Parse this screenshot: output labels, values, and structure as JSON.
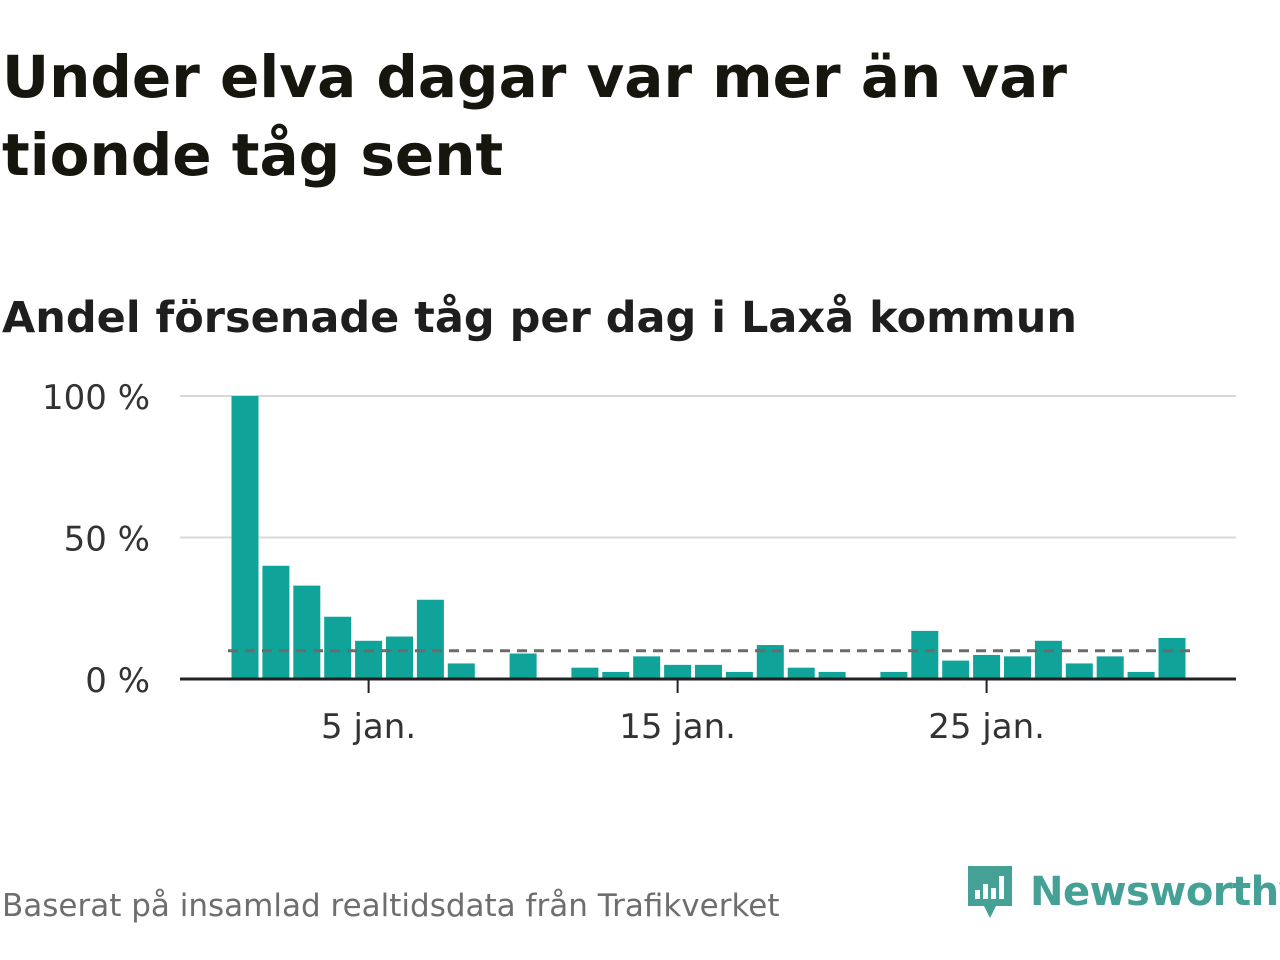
{
  "title": "Under elva dagar var mer än var tionde tåg sent",
  "subtitle": "Andel försenade tåg per dag i Laxå kommun",
  "source": "Baserat på insamlad realtidsdata från Trafikverket",
  "logo": {
    "text": "Newsworthy",
    "icon": "newsworthy-bar-chart-icon",
    "color": "#45a196"
  },
  "colors": {
    "bar": "#0fa39a",
    "grid": "#d9d9d9",
    "axis": "#222222",
    "reference": "#6b6b6b"
  },
  "chart_data": {
    "type": "bar",
    "x_label": "",
    "y_label": "",
    "ylim": [
      0,
      100
    ],
    "y_ticks": [
      {
        "value": 0,
        "label": "0 %"
      },
      {
        "value": 50,
        "label": "50 %"
      },
      {
        "value": 100,
        "label": "100 %"
      }
    ],
    "x_ticks": [
      {
        "day": 5,
        "label": "5 jan."
      },
      {
        "day": 15,
        "label": "15 jan."
      },
      {
        "day": 25,
        "label": "25 jan."
      }
    ],
    "x_range": [
      1,
      31
    ],
    "reference_line": {
      "value": 10,
      "style": "dashed"
    },
    "grid": true,
    "series": [
      {
        "values": [
          {
            "day": 1,
            "value": 100
          },
          {
            "day": 2,
            "value": 40
          },
          {
            "day": 3,
            "value": 33
          },
          {
            "day": 4,
            "value": 22
          },
          {
            "day": 5,
            "value": 13.5
          },
          {
            "day": 6,
            "value": 15
          },
          {
            "day": 7,
            "value": 28
          },
          {
            "day": 8,
            "value": 5.5
          },
          {
            "day": 10,
            "value": 9
          },
          {
            "day": 12,
            "value": 4
          },
          {
            "day": 13,
            "value": 2.5
          },
          {
            "day": 14,
            "value": 8
          },
          {
            "day": 15,
            "value": 5
          },
          {
            "day": 16,
            "value": 5
          },
          {
            "day": 17,
            "value": 2.5
          },
          {
            "day": 18,
            "value": 12
          },
          {
            "day": 19,
            "value": 4
          },
          {
            "day": 20,
            "value": 2.5
          },
          {
            "day": 22,
            "value": 2.5
          },
          {
            "day": 23,
            "value": 17
          },
          {
            "day": 24,
            "value": 6.5
          },
          {
            "day": 25,
            "value": 8.5
          },
          {
            "day": 26,
            "value": 8
          },
          {
            "day": 27,
            "value": 13.5
          },
          {
            "day": 28,
            "value": 5.5
          },
          {
            "day": 29,
            "value": 8
          },
          {
            "day": 30,
            "value": 2.5
          },
          {
            "day": 31,
            "value": 14.5
          }
        ]
      }
    ]
  }
}
